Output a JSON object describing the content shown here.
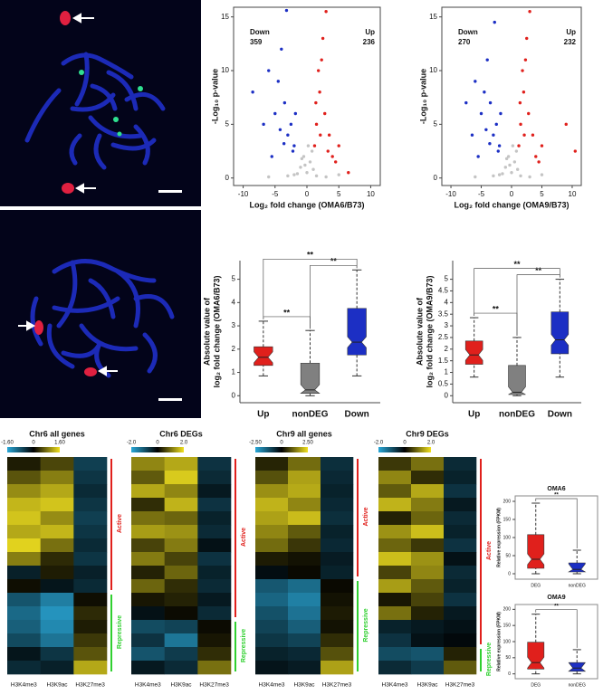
{
  "chart_data": [
    {
      "type": "scatter",
      "xlabel": "Log₂ fold change (OMA6/B73)",
      "ylabel": "-Log₁₀ p-value",
      "xlim": [
        -11.5,
        11.5
      ],
      "ylim": [
        -0.7,
        15.9
      ],
      "xticks": [
        -10,
        -5,
        0,
        5,
        10
      ],
      "yticks": [
        0,
        5,
        10,
        15
      ],
      "series": [
        {
          "name": "Down",
          "count": 359,
          "color": "#1c2fc4",
          "x": [
            -8.5,
            -6,
            -5,
            -4.5,
            -4,
            -3.5,
            -3,
            -2.5,
            -2,
            -5.5,
            -3.2,
            -2.2,
            -6.8,
            -1.8,
            -4.2,
            -3.6
          ],
          "y": [
            8,
            10,
            6,
            9,
            12,
            7,
            4,
            5,
            3,
            2,
            15.6,
            2.5,
            5,
            6,
            4.5,
            3.2
          ]
        },
        {
          "name": "Up",
          "count": 236,
          "color": "#e0201c",
          "x": [
            1.2,
            1.5,
            2,
            2.3,
            2.8,
            3,
            3.5,
            4,
            5,
            1.8,
            2.5,
            4.5,
            1.4,
            6.5,
            2.1,
            3.3
          ],
          "y": [
            3,
            5,
            8,
            11,
            6,
            15.5,
            4,
            2,
            3,
            10,
            13,
            1.5,
            7,
            0.5,
            4,
            2.5
          ]
        },
        {
          "color": "#c4c4c4",
          "x": [
            -2,
            -1,
            -0.5,
            0,
            0.5,
            1,
            1.5,
            -1.5,
            0.8,
            -0.3,
            3,
            -3,
            5,
            -6,
            0.2,
            -0.8
          ],
          "y": [
            0.3,
            1,
            2,
            0.5,
            1.5,
            0.8,
            0.2,
            0.4,
            2.5,
            1.2,
            0.1,
            0.2,
            0.3,
            0.1,
            3,
            1.8
          ]
        }
      ]
    },
    {
      "type": "scatter",
      "xlabel": "Log₂ fold change (OMA9/B73)",
      "ylabel": "-Log₁₀ p-value",
      "xlim": [
        -11.5,
        11.5
      ],
      "ylim": [
        -0.7,
        15.9
      ],
      "xticks": [
        -10,
        -5,
        0,
        5,
        10
      ],
      "yticks": [
        0,
        5,
        10,
        15
      ],
      "series": [
        {
          "name": "Down",
          "count": 270,
          "color": "#1c2fc4",
          "x": [
            -7.5,
            -6,
            -5,
            -4.5,
            -4,
            -3.5,
            -3,
            -2.5,
            -2,
            -5.5,
            -2.8,
            -2.2,
            -6.5,
            -1.8,
            -4.2,
            -3.6
          ],
          "y": [
            7,
            9,
            6,
            8,
            11,
            7,
            4,
            5,
            3,
            2,
            14.5,
            2.5,
            4,
            6,
            4.5,
            3.2
          ]
        },
        {
          "name": "Up",
          "count": 232,
          "color": "#e0201c",
          "x": [
            1.2,
            1.5,
            2,
            2.3,
            2.8,
            3,
            3.5,
            4,
            5,
            1.8,
            2.5,
            4.5,
            1.4,
            9,
            2.1,
            10.5
          ],
          "y": [
            3,
            5,
            8,
            11,
            6,
            15.5,
            4,
            2,
            3,
            10,
            13,
            1.5,
            7,
            5,
            4,
            2.5
          ]
        },
        {
          "color": "#c4c4c4",
          "x": [
            -2,
            -1,
            -0.5,
            0,
            0.5,
            1,
            1.5,
            -1.5,
            0.8,
            -0.3,
            3,
            -3,
            5,
            -6,
            0.2,
            -0.8
          ],
          "y": [
            0.3,
            1,
            2,
            0.5,
            1.5,
            0.8,
            0.2,
            0.4,
            2.5,
            1.2,
            0.1,
            0.2,
            0.3,
            0.1,
            3,
            1.8
          ]
        }
      ]
    },
    {
      "type": "box",
      "ylabel": [
        "Absolute value of",
        "log₂ fold change (OMA6/B73)"
      ],
      "categories": [
        "Up",
        "nonDEG",
        "Down"
      ],
      "colors": [
        "#e0201c",
        "#808080",
        "#1c2fc4"
      ],
      "boxes": [
        {
          "low": 0.85,
          "q1": 1.3,
          "median": 1.65,
          "q3": 2.1,
          "high": 3.2
        },
        {
          "low": 0,
          "q1": 0.1,
          "median": 0.25,
          "q3": 1.4,
          "high": 2.8
        },
        {
          "low": 0.85,
          "q1": 1.75,
          "median": 2.3,
          "q3": 3.75,
          "high": 5.4
        }
      ],
      "ylim": [
        -0.3,
        5.8
      ],
      "yticks": [
        0,
        1,
        2,
        3,
        4,
        5
      ],
      "significance": [
        "**",
        "**",
        "**"
      ]
    },
    {
      "type": "box",
      "ylabel": [
        "Absolute value of",
        "log₂ fold change (OMA9/B73)"
      ],
      "categories": [
        "Up",
        "nonDEG",
        "Down"
      ],
      "colors": [
        "#e0201c",
        "#808080",
        "#1c2fc4"
      ],
      "boxes": [
        {
          "low": 0.8,
          "q1": 1.35,
          "median": 1.75,
          "q3": 2.35,
          "high": 3.35
        },
        {
          "low": 0,
          "q1": 0.05,
          "median": 0.15,
          "q3": 1.3,
          "high": 2.5
        },
        {
          "low": 0.8,
          "q1": 1.8,
          "median": 2.4,
          "q3": 3.6,
          "high": 5.0
        }
      ],
      "ylim": [
        -0.3,
        5.8
      ],
      "yticks": [
        0,
        0.5,
        1,
        1.5,
        2,
        2.5,
        3,
        3.5,
        4,
        4.5,
        5
      ],
      "significance": [
        "**",
        "**",
        "**"
      ]
    },
    {
      "type": "heatmap",
      "title": "Chr6 all genes",
      "columns": [
        "H3K4me3",
        "H3K9ac",
        "H3K27me3"
      ],
      "scale": {
        "lim": [
          -1.6,
          1.6
        ],
        "ticks": [
          {
            "value": -1.6,
            "label": "-1.60"
          },
          0,
          {
            "value": 1.6,
            "label": "1.60"
          }
        ],
        "colors": [
          "#2aa8d8",
          "#000000",
          "#f0e020"
        ]
      },
      "groups": [
        {
          "name": "Active",
          "color": "#e0201c",
          "rows": [
            [
              0.2,
              0.5,
              -0.6
            ],
            [
              0.6,
              0.9,
              -0.5
            ],
            [
              1.0,
              1.2,
              -0.4
            ],
            [
              1.3,
              1.4,
              -0.5
            ],
            [
              1.4,
              1.0,
              -0.6
            ],
            [
              1.2,
              1.3,
              -0.5
            ],
            [
              1.5,
              0.8,
              -0.4
            ],
            [
              0.9,
              0.3,
              -0.5
            ],
            [
              -0.3,
              0.2,
              -0.3
            ],
            [
              0.1,
              -0.2,
              -0.4
            ]
          ]
        },
        {
          "name": "Repressive",
          "color": "#30d030",
          "rows": [
            [
              -0.8,
              -1.2,
              0.1
            ],
            [
              -1.0,
              -1.4,
              0.3
            ],
            [
              -0.9,
              -1.3,
              0.2
            ],
            [
              -0.7,
              -1.1,
              0.4
            ],
            [
              -0.2,
              -0.5,
              0.6
            ],
            [
              -0.4,
              -0.3,
              1.2
            ]
          ]
        }
      ]
    },
    {
      "type": "heatmap",
      "title": "Chr6 DEGs",
      "columns": [
        "H3K4me3",
        "H3K9ac",
        "H3K27me3"
      ],
      "scale": {
        "lim": [
          -2,
          2
        ],
        "ticks": [
          {
            "value": -2,
            "label": "-2.0"
          },
          0,
          {
            "value": 2,
            "label": "2.0"
          }
        ],
        "colors": [
          "#2aa8d8",
          "#000000",
          "#f0e020"
        ]
      },
      "groups": [
        {
          "name": "Active",
          "color": "#e0201c",
          "rows": [
            [
              1.2,
              1.5,
              -0.6
            ],
            [
              0.8,
              1.8,
              -0.5
            ],
            [
              1.5,
              1.2,
              -0.3
            ],
            [
              0.4,
              1.6,
              -0.6
            ],
            [
              1.0,
              0.9,
              -0.4
            ],
            [
              1.4,
              1.3,
              -0.5
            ],
            [
              0.6,
              1.1,
              -0.2
            ],
            [
              1.1,
              0.6,
              -0.6
            ],
            [
              0.3,
              0.9,
              -0.4
            ],
            [
              0.9,
              0.4,
              -0.5
            ],
            [
              0.2,
              0.3,
              -0.3
            ],
            [
              -0.2,
              0.1,
              -0.5
            ]
          ]
        },
        {
          "name": "Repressive",
          "color": "#30d030",
          "rows": [
            [
              -0.9,
              -0.8,
              0.1
            ],
            [
              -0.6,
              -1.4,
              0.2
            ],
            [
              -1.0,
              -0.7,
              0.4
            ],
            [
              -0.3,
              -0.5,
              1.0
            ]
          ]
        }
      ]
    },
    {
      "type": "heatmap",
      "title": "Chr9 all genes",
      "columns": [
        "H3K4me3",
        "H3K9ac",
        "H3K27me3"
      ],
      "scale": {
        "lim": [
          -2.5,
          2.5
        ],
        "ticks": [
          {
            "value": -2.5,
            "label": "-2.50"
          },
          0,
          {
            "value": 2.5,
            "label": "2.50"
          }
        ],
        "colors": [
          "#2aa8d8",
          "#000000",
          "#f0e020"
        ]
      },
      "groups": [
        {
          "name": "Active",
          "color": "#e0201c",
          "rows": [
            [
              0.4,
              1.2,
              -0.7
            ],
            [
              0.9,
              1.8,
              -0.6
            ],
            [
              1.6,
              1.9,
              -0.5
            ],
            [
              2.0,
              1.5,
              -0.6
            ],
            [
              1.8,
              2.1,
              -0.7
            ],
            [
              1.5,
              1.0,
              -0.5
            ],
            [
              1.2,
              0.6,
              -0.6
            ],
            [
              0.3,
              0.2,
              -0.4
            ],
            [
              -0.2,
              0.1,
              -0.5
            ]
          ]
        },
        {
          "name": "Repressive",
          "color": "#30d030",
          "rows": [
            [
              -1.3,
              -1.6,
              0.1
            ],
            [
              -1.5,
              -1.9,
              0.2
            ],
            [
              -1.2,
              -1.7,
              0.3
            ],
            [
              -1.0,
              -1.4,
              0.2
            ],
            [
              -0.8,
              -1.0,
              0.5
            ],
            [
              -0.5,
              -0.6,
              0.9
            ],
            [
              -0.3,
              -0.4,
              1.8
            ]
          ]
        }
      ]
    },
    {
      "type": "heatmap",
      "title": "Chr9 DEGs",
      "columns": [
        "H3K4me3",
        "H3K9ac",
        "H3K27me3"
      ],
      "scale": {
        "lim": [
          -2,
          2
        ],
        "ticks": [
          {
            "value": -2,
            "label": "-2.0"
          },
          0,
          {
            "value": 2,
            "label": "2.0"
          }
        ],
        "colors": [
          "#2aa8d8",
          "#000000",
          "#f0e020"
        ]
      },
      "groups": [
        {
          "name": "Active",
          "color": "#e0201c",
          "rows": [
            [
              0.5,
              1.0,
              -0.5
            ],
            [
              1.2,
              0.4,
              -0.4
            ],
            [
              0.8,
              1.5,
              -0.6
            ],
            [
              1.6,
              1.1,
              -0.3
            ],
            [
              0.3,
              0.9,
              -0.5
            ],
            [
              1.3,
              1.7,
              -0.4
            ],
            [
              0.9,
              0.5,
              -0.6
            ],
            [
              1.7,
              1.3,
              -0.2
            ],
            [
              0.6,
              1.2,
              -0.5
            ],
            [
              1.4,
              0.8,
              -0.4
            ],
            [
              0.2,
              0.6,
              -0.6
            ],
            [
              1.0,
              0.3,
              -0.3
            ],
            [
              -0.4,
              -0.3,
              -0.2
            ],
            [
              -0.6,
              -0.2,
              -0.1
            ]
          ]
        },
        {
          "name": "Repressive",
          "color": "#30d030",
          "rows": [
            [
              -0.9,
              -1.0,
              0.3
            ],
            [
              -0.5,
              -0.7,
              0.8
            ]
          ]
        }
      ]
    },
    {
      "type": "box",
      "title": "OMA6",
      "ylabel": "Relative expression (FPKM)",
      "categories": [
        "DEG",
        "nonDEG"
      ],
      "colors": [
        "#e0201c",
        "#1c2fc4"
      ],
      "boxes": [
        {
          "low": 0,
          "q1": 15,
          "median": 40,
          "q3": 108,
          "high": 195
        },
        {
          "low": 0,
          "q1": 5,
          "median": 12,
          "q3": 30,
          "high": 65
        }
      ],
      "ylim": [
        -15,
        215
      ],
      "yticks": [
        0,
        50,
        100,
        150,
        200
      ],
      "significance": [
        "**"
      ]
    },
    {
      "type": "box",
      "title": "OMA9",
      "ylabel": "Relative expression (FPKM)",
      "categories": [
        "DEG",
        "nonDEG"
      ],
      "colors": [
        "#e0201c",
        "#1c2fc4"
      ],
      "boxes": [
        {
          "low": 0,
          "q1": 15,
          "median": 35,
          "q3": 98,
          "high": 185
        },
        {
          "low": 0,
          "q1": 8,
          "median": 18,
          "q3": 35,
          "high": 75
        }
      ],
      "ylim": [
        -15,
        215
      ],
      "yticks": [
        0,
        50,
        100,
        150,
        200
      ],
      "significance": [
        "**"
      ]
    }
  ]
}
